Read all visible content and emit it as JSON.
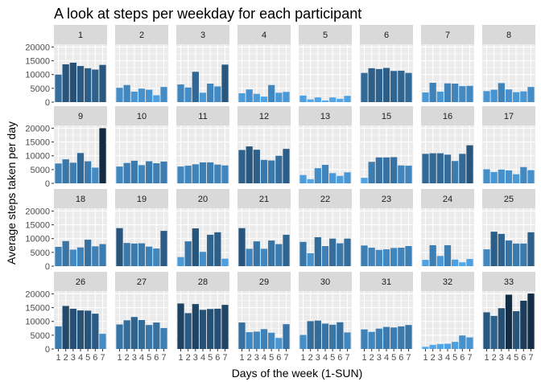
{
  "chart_data": {
    "type": "bar",
    "faceted": true,
    "title": "A look at steps per weekday for each participant",
    "xlabel": "Days of the week (1-SUN)",
    "ylabel": "Average steps taken per day",
    "ylim": [
      0,
      21000
    ],
    "y_ticks": [
      0,
      5000,
      10000,
      15000,
      20000
    ],
    "y_tick_labels": [
      "0",
      "5000",
      "10000",
      "15000",
      "20000"
    ],
    "x_categories": [
      "1",
      "2",
      "3",
      "4",
      "5",
      "6",
      "7"
    ],
    "grid": true,
    "facet_strip_color": "#d9d9d9",
    "panel_background": "#ebebeb",
    "grid_color": "#ffffff",
    "fill_gradient": {
      "low": "#56b1f7",
      "high": "#132b43",
      "domain": [
        0,
        20000
      ]
    },
    "facets": [
      {
        "label": "1",
        "values": [
          10000,
          13700,
          14300,
          13100,
          12300,
          11800,
          13500
        ]
      },
      {
        "label": "2",
        "values": [
          5200,
          6200,
          3800,
          4900,
          4500,
          2500,
          5500
        ]
      },
      {
        "label": "3",
        "values": [
          6400,
          5300,
          11000,
          3400,
          6700,
          5700,
          13600
        ]
      },
      {
        "label": "4",
        "values": [
          3200,
          4600,
          3000,
          2000,
          6200,
          3400,
          3700
        ]
      },
      {
        "label": "5",
        "values": [
          2400,
          1000,
          1700,
          600,
          1700,
          1200,
          2300
        ]
      },
      {
        "label": "6",
        "values": [
          10600,
          12300,
          12000,
          12400,
          11300,
          11400,
          10600
        ]
      },
      {
        "label": "7",
        "values": [
          3500,
          7000,
          3800,
          6800,
          6700,
          5800,
          5900
        ]
      },
      {
        "label": "8",
        "values": [
          4000,
          4500,
          6900,
          4600,
          3600,
          3900,
          5500
        ]
      },
      {
        "label": "9",
        "values": [
          7200,
          8700,
          7500,
          11000,
          8000,
          5700,
          20000
        ]
      },
      {
        "label": "10",
        "values": [
          6100,
          7400,
          8200,
          6600,
          8000,
          7300,
          7900
        ]
      },
      {
        "label": "11",
        "values": [
          6100,
          6400,
          6900,
          7600,
          7600,
          6800,
          6500
        ]
      },
      {
        "label": "12",
        "values": [
          12100,
          13400,
          12200,
          8500,
          8300,
          10000,
          12500
        ]
      },
      {
        "label": "13",
        "values": [
          3000,
          1500,
          5500,
          6700,
          3700,
          2700,
          4000
        ]
      },
      {
        "label": "15",
        "values": [
          2000,
          7800,
          9400,
          9400,
          9500,
          6500,
          6400
        ]
      },
      {
        "label": "16",
        "values": [
          10700,
          10900,
          10900,
          10400,
          8100,
          10700,
          13800
        ]
      },
      {
        "label": "17",
        "values": [
          5100,
          4100,
          5000,
          4700,
          3300,
          5900,
          4800
        ]
      },
      {
        "label": "18",
        "values": [
          7000,
          9100,
          6000,
          6800,
          9600,
          7200,
          8000
        ]
      },
      {
        "label": "19",
        "values": [
          13800,
          8400,
          8200,
          8300,
          7100,
          6400,
          12800
        ]
      },
      {
        "label": "20",
        "values": [
          3300,
          9000,
          13700,
          5200,
          11400,
          12300,
          2700
        ]
      },
      {
        "label": "21",
        "values": [
          13800,
          6300,
          9000,
          6300,
          9300,
          8000,
          11400
        ]
      },
      {
        "label": "22",
        "values": [
          8800,
          4700,
          10500,
          7300,
          10000,
          8300,
          10000
        ]
      },
      {
        "label": "23",
        "values": [
          7500,
          6700,
          5900,
          6100,
          6600,
          6700,
          7300
        ]
      },
      {
        "label": "24",
        "values": [
          2300,
          7600,
          3700,
          7600,
          2400,
          1400,
          2600
        ]
      },
      {
        "label": "25",
        "values": [
          6100,
          12500,
          11700,
          9300,
          8200,
          8200,
          12300
        ]
      },
      {
        "label": "26",
        "values": [
          8200,
          15600,
          14600,
          14000,
          13900,
          12800,
          5500
        ]
      },
      {
        "label": "27",
        "values": [
          8900,
          10400,
          11600,
          10500,
          8700,
          9600,
          7600
        ]
      },
      {
        "label": "28",
        "values": [
          16500,
          13000,
          16300,
          14200,
          14500,
          14600,
          16000
        ]
      },
      {
        "label": "29",
        "values": [
          9600,
          6100,
          6300,
          7200,
          5900,
          4000,
          9000
        ]
      },
      {
        "label": "30",
        "values": [
          5100,
          10100,
          10300,
          9200,
          8800,
          9700,
          6000
        ]
      },
      {
        "label": "31",
        "values": [
          7100,
          6200,
          7400,
          8000,
          7800,
          8200,
          8700
        ]
      },
      {
        "label": "32",
        "values": [
          800,
          1500,
          1800,
          1900,
          2600,
          4900,
          4200
        ]
      },
      {
        "label": "33",
        "values": [
          13300,
          12000,
          14800,
          19700,
          13700,
          17500,
          20100
        ]
      }
    ]
  }
}
